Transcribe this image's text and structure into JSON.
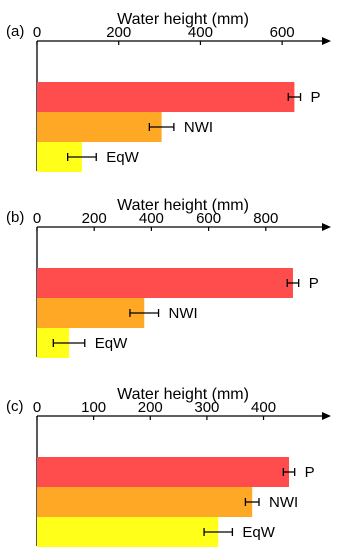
{
  "colors": {
    "P": "#ff4d4d",
    "NWI": "#ffa826",
    "EqW": "#ffff1a",
    "axis": "#000000"
  },
  "chart_data": [
    {
      "type": "bar",
      "panel_label": "(a)",
      "xlabel": "Water height (mm)",
      "ticks": [
        0,
        200,
        400,
        600
      ],
      "xlim": [
        0,
        700
      ],
      "categories": [
        "P",
        "NWI",
        "EqW"
      ],
      "values": [
        630,
        305,
        110
      ],
      "errors": [
        15,
        30,
        35
      ]
    },
    {
      "type": "bar",
      "panel_label": "(b)",
      "xlabel": "Water height (mm)",
      "ticks": [
        0,
        200,
        400,
        600,
        800
      ],
      "xlim": [
        0,
        1000
      ],
      "categories": [
        "P",
        "NWI",
        "EqW"
      ],
      "values": [
        895,
        375,
        112
      ],
      "errors": [
        20,
        50,
        55
      ]
    },
    {
      "type": "bar",
      "panel_label": "(c)",
      "xlabel": "Water height (mm)",
      "ticks": [
        0,
        100,
        200,
        300,
        400
      ],
      "xlim": [
        0,
        505
      ],
      "categories": [
        "P",
        "NWI",
        "EqW"
      ],
      "values": [
        445,
        380,
        320
      ],
      "errors": [
        10,
        12,
        25
      ]
    }
  ]
}
